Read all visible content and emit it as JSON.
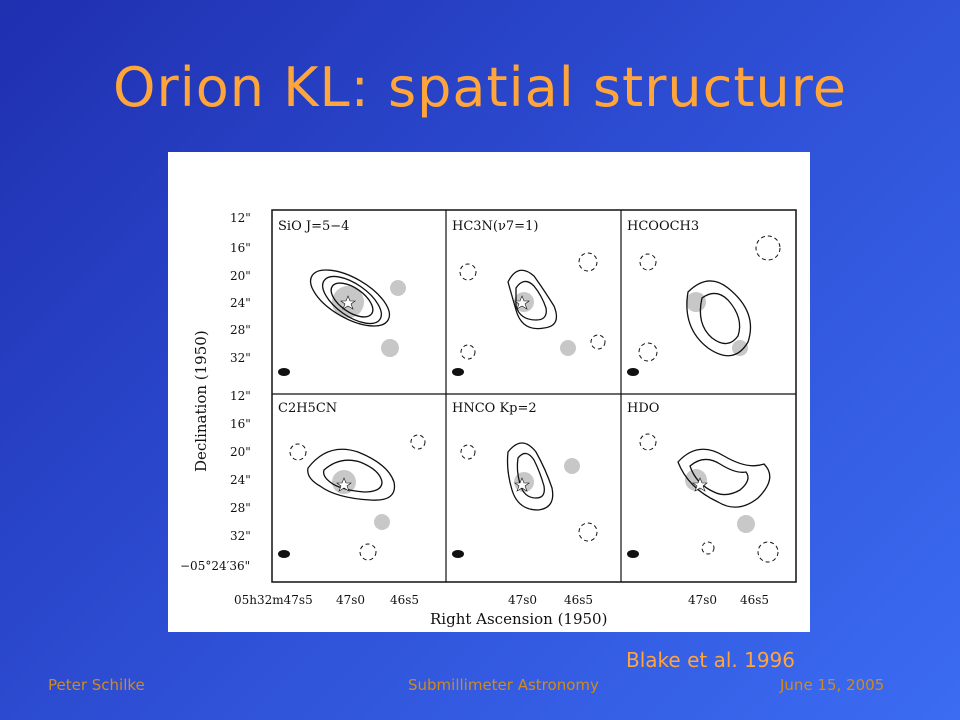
{
  "slide": {
    "title": "Orion KL: spatial structure",
    "citation": "Blake et al. 1996"
  },
  "footer": {
    "author": "Peter Schilke",
    "course": "Submillimeter Astronomy",
    "date": "June 15, 2005"
  },
  "figure": {
    "ylabel": "Declination (1950)",
    "xlabel": "Right Ascension (1950)",
    "yticks": [
      "12\"",
      "16\"",
      "20\"",
      "24\"",
      "28\"",
      "32\""
    ],
    "yticks_bottom": [
      "12\"",
      "16\"",
      "20\"",
      "24\"",
      "28\"",
      "32\"",
      "−05°24′36\""
    ],
    "xticks_col1": [
      "05h32m47s5",
      "47s0",
      "46s5"
    ],
    "xticks_col2": [
      "47s0",
      "46s5"
    ],
    "xticks_col3": [
      "47s0",
      "46s5"
    ],
    "panels": [
      {
        "label": "SiO J=5−4"
      },
      {
        "label": "HC3N(ν7=1)"
      },
      {
        "label": "HCOOCH3"
      },
      {
        "label": "C2H5CN"
      },
      {
        "label": "HNCO Kp=2"
      },
      {
        "label": "HDO"
      }
    ]
  }
}
